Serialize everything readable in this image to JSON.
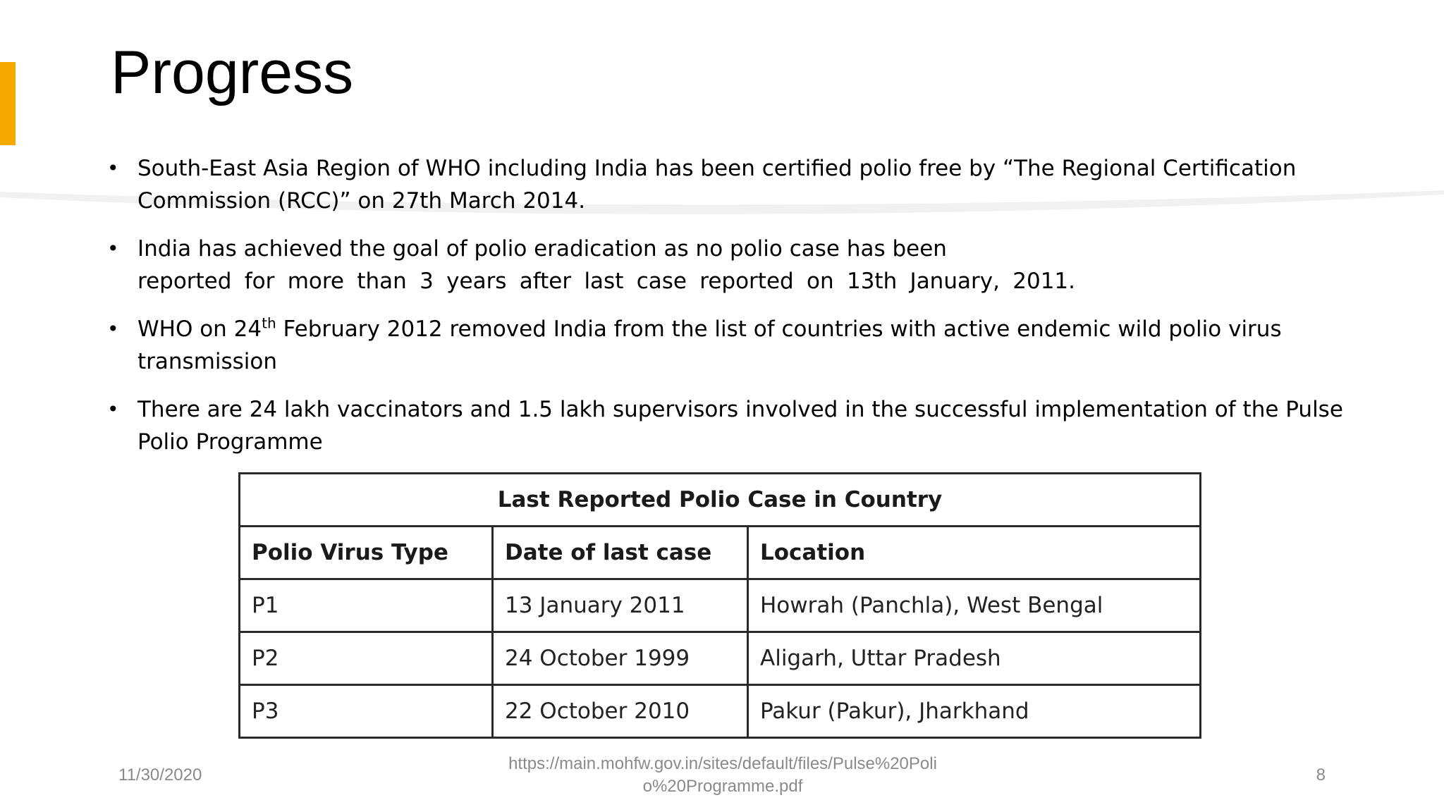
{
  "slide": {
    "title": "Progress",
    "accent_color": "#F5A800",
    "bullets": [
      {
        "lines": [
          "South-East Asia Region of WHO including India has been certified polio free by “The Regional Certification",
          "Commission (RCC)” on 27th March 2014."
        ]
      },
      {
        "lines": [
          "India has achieved the goal of polio eradication as no polio case has been",
          "reported for more than 3 years after last case reported on 13th January, 2011."
        ]
      },
      {
        "line1_pre": "WHO on 24",
        "line1_sup": "th",
        "line1_post": " February 2012 removed India from the list of countries with active endemic wild polio virus",
        "line2": "transmission"
      },
      {
        "lines": [
          "There are 24 lakh vaccinators and 1.5 lakh supervisors involved in the successful implementation of the Pulse",
          "Polio Programme"
        ]
      }
    ],
    "table": {
      "caption": "Last Reported Polio Case in Country",
      "headers": [
        "Polio Virus Type",
        "Date of last case",
        "Location"
      ],
      "rows": [
        [
          "P1",
          "13 January 2011",
          "Howrah (Panchla), West Bengal"
        ],
        [
          "P2",
          "24 October 1999",
          "Aligarh, Uttar Pradesh"
        ],
        [
          "P3",
          "22 October 2010",
          "Pakur (Pakur), Jharkhand"
        ]
      ]
    },
    "footer": {
      "date": "11/30/2020",
      "source_line1": "https://main.mohfw.gov.in/sites/default/files/Pulse%20Poli",
      "source_line2": "o%20Programme.pdf",
      "page_number": "8"
    }
  }
}
